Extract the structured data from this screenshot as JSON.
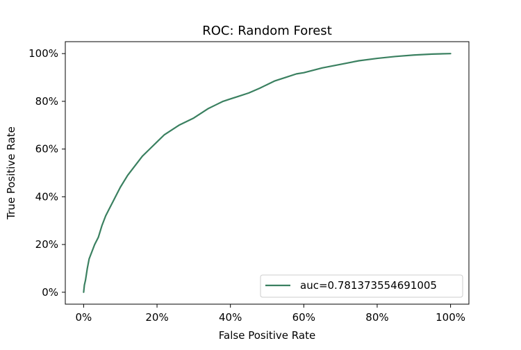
{
  "chart_data": {
    "type": "line",
    "title": "ROC: Random Forest",
    "xlabel": "False Positive Rate",
    "ylabel": "True Positive Rate",
    "xlim": [
      -0.05,
      1.05
    ],
    "ylim": [
      -0.05,
      1.05
    ],
    "x_ticks": [
      0,
      0.2,
      0.4,
      0.6,
      0.8,
      1.0
    ],
    "x_tick_labels": [
      "0%",
      "20%",
      "40%",
      "60%",
      "80%",
      "100%"
    ],
    "y_ticks": [
      0,
      0.2,
      0.4,
      0.6,
      0.8,
      1.0
    ],
    "y_tick_labels": [
      "0%",
      "20%",
      "40%",
      "60%",
      "80%",
      "100%"
    ],
    "grid": false,
    "legend": {
      "position": "lower-right",
      "entries": [
        "auc=0.781373554691005"
      ]
    },
    "series": [
      {
        "name": "auc=0.781373554691005",
        "color": "#3a8060",
        "x": [
          0,
          0.002,
          0.005,
          0.01,
          0.015,
          0.02,
          0.03,
          0.04,
          0.05,
          0.06,
          0.07,
          0.08,
          0.09,
          0.1,
          0.12,
          0.14,
          0.16,
          0.18,
          0.2,
          0.22,
          0.24,
          0.26,
          0.28,
          0.3,
          0.32,
          0.34,
          0.36,
          0.38,
          0.4,
          0.42,
          0.45,
          0.48,
          0.5,
          0.52,
          0.55,
          0.58,
          0.6,
          0.65,
          0.7,
          0.75,
          0.8,
          0.85,
          0.9,
          0.95,
          1.0
        ],
        "y": [
          0,
          0.03,
          0.05,
          0.1,
          0.14,
          0.16,
          0.2,
          0.23,
          0.28,
          0.32,
          0.35,
          0.38,
          0.41,
          0.44,
          0.49,
          0.53,
          0.57,
          0.6,
          0.63,
          0.66,
          0.68,
          0.7,
          0.715,
          0.73,
          0.75,
          0.77,
          0.785,
          0.8,
          0.81,
          0.82,
          0.835,
          0.855,
          0.87,
          0.885,
          0.9,
          0.915,
          0.92,
          0.94,
          0.955,
          0.97,
          0.98,
          0.988,
          0.994,
          0.998,
          1.0
        ]
      }
    ]
  }
}
